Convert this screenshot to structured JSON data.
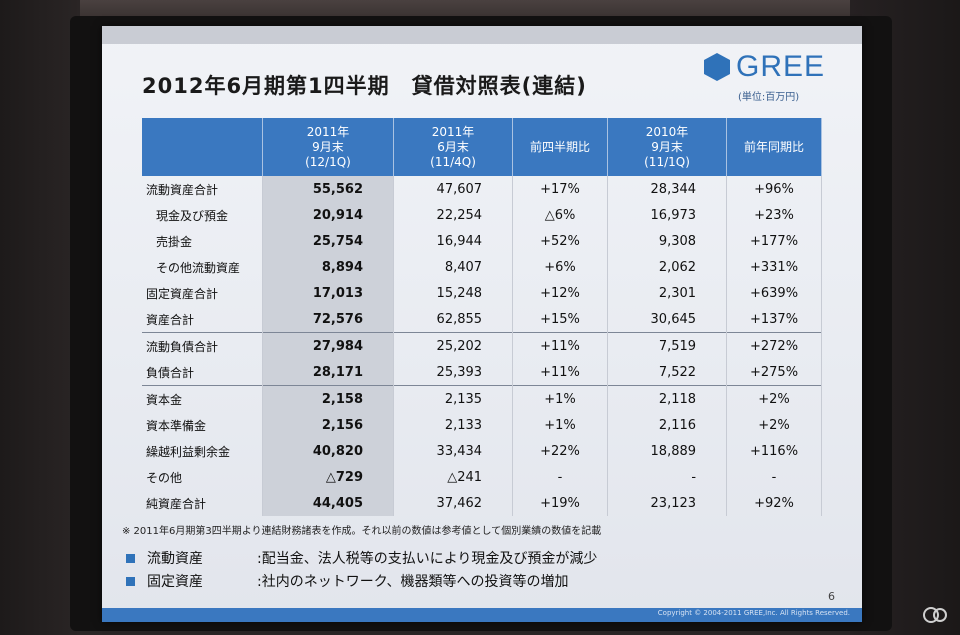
{
  "title": "2012年6月期第1四半期　貸借対照表(連結)",
  "logo_text": "GREE",
  "unit_note": "(単位:百万円)",
  "columns": [
    {
      "l1": "",
      "l2": "",
      "l3": ""
    },
    {
      "l1": "2011年",
      "l2": "9月末",
      "l3": "(12/1Q)"
    },
    {
      "l1": "2011年",
      "l2": "6月末",
      "l3": "(11/4Q)"
    },
    {
      "l1": "前四半期比",
      "l2": "",
      "l3": ""
    },
    {
      "l1": "2010年",
      "l2": "9月末",
      "l3": "(11/1Q)"
    },
    {
      "l1": "前年同期比",
      "l2": "",
      "l3": ""
    }
  ],
  "rows": [
    {
      "label": "流動資産合計",
      "c1": "55,562",
      "c2": "47,607",
      "c3": "+17%",
      "c4": "28,344",
      "c5": "+96%"
    },
    {
      "label": "現金及び預金",
      "c1": "20,914",
      "c2": "22,254",
      "c3": "△6%",
      "c4": "16,973",
      "c5": "+23%"
    },
    {
      "label": "売掛金",
      "c1": "25,754",
      "c2": "16,944",
      "c3": "+52%",
      "c4": "9,308",
      "c5": "+177%"
    },
    {
      "label": "その他流動資産",
      "c1": "8,894",
      "c2": "8,407",
      "c3": "+6%",
      "c4": "2,062",
      "c5": "+331%"
    },
    {
      "label": "固定資産合計",
      "c1": "17,013",
      "c2": "15,248",
      "c3": "+12%",
      "c4": "2,301",
      "c5": "+639%"
    },
    {
      "label": "資産合計",
      "c1": "72,576",
      "c2": "62,855",
      "c3": "+15%",
      "c4": "30,645",
      "c5": "+137%"
    },
    {
      "label": "流動負債合計",
      "c1": "27,984",
      "c2": "25,202",
      "c3": "+11%",
      "c4": "7,519",
      "c5": "+272%"
    },
    {
      "label": "負債合計",
      "c1": "28,171",
      "c2": "25,393",
      "c3": "+11%",
      "c4": "7,522",
      "c5": "+275%"
    },
    {
      "label": "資本金",
      "c1": "2,158",
      "c2": "2,135",
      "c3": "+1%",
      "c4": "2,118",
      "c5": "+2%"
    },
    {
      "label": "資本準備金",
      "c1": "2,156",
      "c2": "2,133",
      "c3": "+1%",
      "c4": "2,116",
      "c5": "+2%"
    },
    {
      "label": "繰越利益剰余金",
      "c1": "40,820",
      "c2": "33,434",
      "c3": "+22%",
      "c4": "18,889",
      "c5": "+116%"
    },
    {
      "label": "その他",
      "c1": "△729",
      "c2": "△241",
      "c3": "-",
      "c4": "-",
      "c5": "-"
    },
    {
      "label": "純資産合計",
      "c1": "44,405",
      "c2": "37,462",
      "c3": "+19%",
      "c4": "23,123",
      "c5": "+92%"
    }
  ],
  "footnote": "※ 2011年6月期第3四半期より連結財務諸表を作成。それ以前の数値は参考値として個別業績の数値を記載",
  "bullets": [
    {
      "label": "流動資産",
      "text": ":配当金、法人税等の支払いにより現金及び預金が減少"
    },
    {
      "label": "固定資産",
      "text": ":社内のネットワーク、機器類等への投資等の増加"
    }
  ],
  "page_number": "6",
  "copyright": "Copyright © 2004-2011 GREE,Inc. All Rights Reserved."
}
